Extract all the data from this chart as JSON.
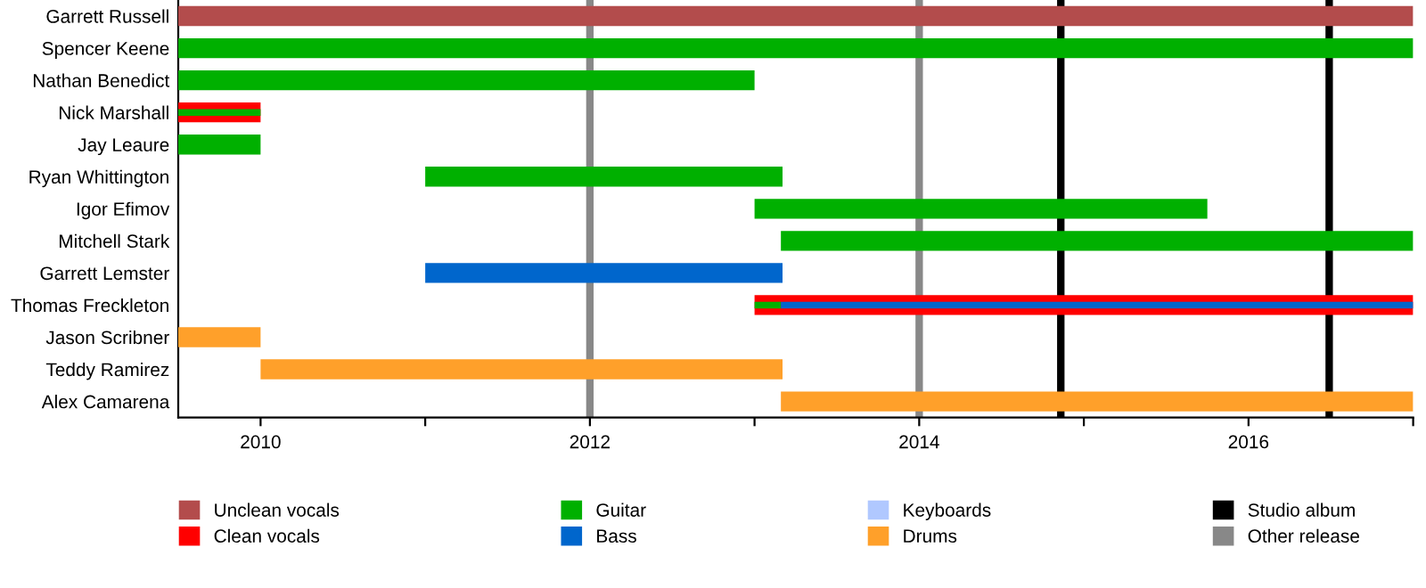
{
  "chart_data": {
    "type": "bar",
    "orientation": "horizontal",
    "categories": [
      "Garrett Russell",
      "Spencer Keene",
      "Nathan Benedict",
      "Nick Marshall",
      "Jay Leaure",
      "Ryan Whittington",
      "Igor Efimov",
      "Mitchell Stark",
      "Garrett Lemster",
      "Thomas Freckleton",
      "Jason Scribner",
      "Teddy Ramirez",
      "Alex Camarena"
    ],
    "series": [
      {
        "name": "Unclean vocals",
        "color": "#b34c4c",
        "base": [
          2009.5,
          null,
          null,
          null,
          null,
          null,
          null,
          null,
          null,
          null,
          null,
          null,
          null
        ],
        "values": [
          7.5,
          null,
          null,
          null,
          null,
          null,
          null,
          null,
          null,
          null,
          null,
          null,
          null
        ]
      },
      {
        "name": "Clean vocals",
        "color": "#ff0000",
        "base": [
          null,
          null,
          null,
          2009.5,
          null,
          null,
          null,
          null,
          null,
          2013.0,
          null,
          null,
          null
        ],
        "values": [
          null,
          null,
          null,
          0.5,
          null,
          null,
          null,
          null,
          null,
          4.0,
          null,
          null,
          null
        ]
      },
      {
        "name": "Guitar",
        "color": "#00b000",
        "base": [
          null,
          2009.5,
          2009.5,
          2009.5,
          2009.5,
          2011.0,
          2013.0,
          2013.16,
          null,
          2013.0,
          null,
          null,
          null
        ],
        "values": [
          null,
          7.5,
          3.5,
          0.5,
          0.5,
          2.17,
          2.75,
          3.84,
          null,
          0.16,
          null,
          null,
          null
        ]
      },
      {
        "name": "Bass",
        "color": "#0066cc",
        "base": [
          null,
          null,
          null,
          null,
          null,
          null,
          null,
          null,
          2011.0,
          2013.16,
          null,
          null,
          null
        ],
        "values": [
          null,
          null,
          null,
          null,
          null,
          null,
          null,
          null,
          2.17,
          3.84,
          null,
          null,
          null
        ]
      },
      {
        "name": "Keyboards",
        "color": "#b0c8ff",
        "base": [
          null,
          null,
          null,
          null,
          null,
          null,
          null,
          null,
          null,
          null,
          null,
          null,
          null
        ],
        "values": [
          null,
          null,
          null,
          null,
          null,
          null,
          null,
          null,
          null,
          null,
          null,
          null,
          null
        ]
      },
      {
        "name": "Drums",
        "color": "#ffa02a",
        "base": [
          null,
          null,
          null,
          null,
          null,
          null,
          null,
          null,
          null,
          null,
          2009.5,
          2010.0,
          2013.16
        ],
        "values": [
          null,
          null,
          null,
          null,
          null,
          null,
          null,
          null,
          null,
          null,
          0.5,
          3.17,
          3.84
        ]
      }
    ],
    "xlim": [
      2009.5,
      2017
    ],
    "xticks": [
      2010,
      {
        "value": 2011,
        "label": null
      },
      2012,
      {
        "value": 2013,
        "label": null
      },
      2014,
      {
        "value": 2015,
        "label": null
      },
      2016,
      {
        "value": 2017,
        "label": null
      }
    ],
    "ref_lines": [
      {
        "axis": "x",
        "value": 2014.86,
        "label": "Studio album",
        "color": "#000000"
      },
      {
        "axis": "x",
        "value": 2016.49,
        "color": "#000000"
      },
      {
        "axis": "x",
        "value": 2012.0,
        "label": "Other release",
        "color": "#888888"
      },
      {
        "axis": "x",
        "value": 2014.0,
        "color": "#888888"
      }
    ],
    "grid": false,
    "legend": "bottom"
  }
}
